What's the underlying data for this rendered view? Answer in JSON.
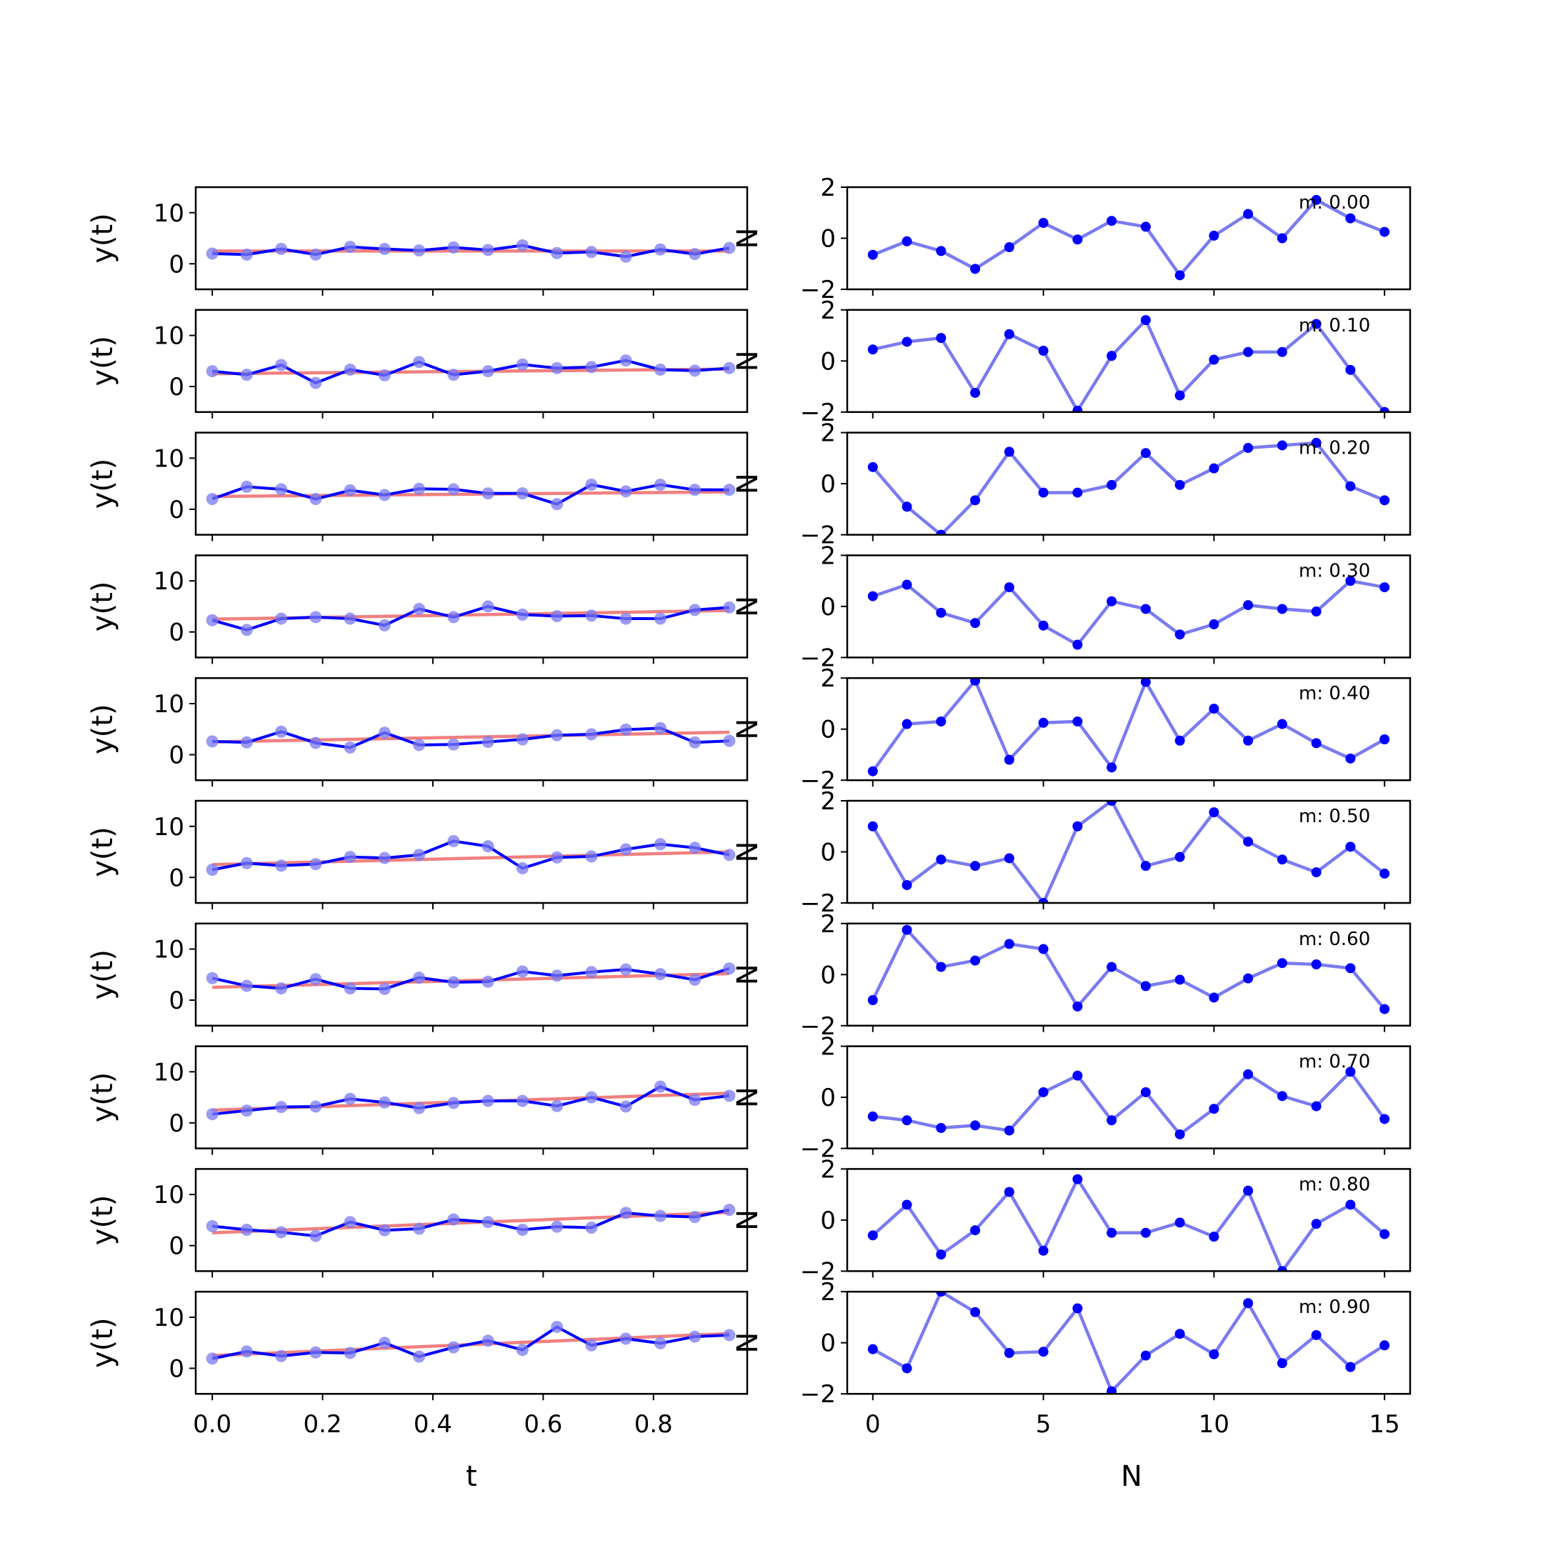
{
  "chart_data": [
    {
      "type": "line",
      "title": "",
      "xlabel": "t",
      "ylabel": "y(t)",
      "xlim": [
        -0.03,
        0.97
      ],
      "ylim": [
        -5,
        15
      ],
      "xticks": [
        0.0,
        0.2,
        0.4,
        0.6,
        0.8
      ],
      "xtick_labels": [
        "0.0",
        "0.2",
        "0.4",
        "0.6",
        "0.8"
      ],
      "yticks": [
        0,
        10
      ],
      "ytick_labels": [
        "0",
        "10"
      ],
      "x": [
        0.0,
        0.0625,
        0.125,
        0.1875,
        0.25,
        0.3125,
        0.375,
        0.4375,
        0.5,
        0.5625,
        0.625,
        0.6875,
        0.75,
        0.8125,
        0.875,
        0.9375
      ],
      "panels": [
        {
          "y": [
            2.0,
            1.8,
            2.9,
            1.8,
            3.3,
            2.9,
            2.6,
            3.2,
            2.7,
            3.6,
            2.1,
            2.3,
            1.4,
            2.8,
            1.9,
            3.1
          ],
          "fit": [
            2.5,
            2.5
          ]
        },
        {
          "y": [
            3.0,
            2.3,
            4.2,
            0.7,
            3.3,
            2.2,
            4.8,
            2.3,
            3.0,
            4.3,
            3.6,
            3.8,
            5.1,
            3.3,
            3.1,
            3.6
          ],
          "fit": [
            2.5,
            3.4
          ]
        },
        {
          "y": [
            2.0,
            4.4,
            3.9,
            2.0,
            3.7,
            2.8,
            4.0,
            3.9,
            3.1,
            3.1,
            1.0,
            4.8,
            3.5,
            4.8,
            3.8,
            3.8
          ],
          "fit": [
            2.5,
            3.4
          ]
        },
        {
          "y": [
            2.3,
            0.4,
            2.6,
            2.9,
            2.6,
            1.3,
            4.5,
            2.9,
            5.0,
            3.4,
            3.1,
            3.2,
            2.6,
            2.6,
            4.3,
            4.8
          ],
          "fit": [
            2.5,
            4.2
          ]
        },
        {
          "y": [
            2.6,
            2.4,
            4.5,
            2.3,
            1.4,
            4.3,
            1.9,
            2.0,
            2.5,
            3.0,
            3.8,
            4.0,
            4.9,
            5.2,
            2.4,
            2.7
          ],
          "fit": [
            2.5,
            4.4
          ]
        },
        {
          "y": [
            1.5,
            2.8,
            2.3,
            2.6,
            4.0,
            3.8,
            4.4,
            7.1,
            6.1,
            1.8,
            3.9,
            4.1,
            5.5,
            6.5,
            5.8,
            4.4
          ],
          "fit": [
            2.5,
            5.0
          ]
        },
        {
          "y": [
            4.3,
            2.8,
            2.3,
            4.1,
            2.3,
            2.2,
            4.4,
            3.5,
            3.6,
            5.6,
            4.8,
            5.5,
            6.0,
            5.1,
            4.0,
            6.2
          ],
          "fit": [
            2.5,
            5.2
          ]
        },
        {
          "y": [
            1.7,
            2.4,
            3.1,
            3.2,
            4.7,
            4.0,
            2.9,
            3.9,
            4.3,
            4.3,
            3.3,
            5.0,
            3.2,
            7.1,
            4.5,
            5.3
          ],
          "fit": [
            2.5,
            5.8
          ]
        },
        {
          "y": [
            3.8,
            3.1,
            2.6,
            1.9,
            4.6,
            3.0,
            3.3,
            5.1,
            4.6,
            3.1,
            3.7,
            3.5,
            6.4,
            5.8,
            5.6,
            7.0
          ],
          "fit": [
            2.5,
            6.5
          ]
        },
        {
          "y": [
            1.9,
            3.3,
            2.4,
            3.1,
            3.0,
            5.0,
            2.3,
            4.1,
            5.4,
            3.6,
            8.1,
            4.5,
            5.8,
            4.9,
            6.2,
            6.5
          ],
          "fit": [
            2.5,
            6.8
          ]
        }
      ]
    },
    {
      "type": "line",
      "title": "",
      "xlabel": "N",
      "ylabel": "N",
      "xlim": [
        -0.75,
        15.75
      ],
      "ylim": [
        -2,
        2
      ],
      "xticks": [
        0,
        5,
        10,
        15
      ],
      "xtick_labels": [
        "0",
        "5",
        "10",
        "15"
      ],
      "yticks": [
        -2,
        0,
        2
      ],
      "ytick_labels": [
        "−2",
        "0",
        "2"
      ],
      "x": [
        0,
        1,
        2,
        3,
        4,
        5,
        6,
        7,
        8,
        9,
        10,
        11,
        12,
        13,
        14,
        15
      ],
      "panels": [
        {
          "label": "m: 0.00",
          "y": [
            -0.65,
            -0.12,
            -0.5,
            -1.2,
            -0.35,
            0.6,
            -0.05,
            0.68,
            0.45,
            -1.45,
            0.1,
            0.95,
            0.0,
            1.5,
            0.78,
            0.25
          ]
        },
        {
          "label": "m: 0.10",
          "y": [
            0.45,
            0.75,
            0.9,
            -1.25,
            1.05,
            0.4,
            -1.95,
            0.2,
            1.6,
            -1.35,
            0.05,
            0.35,
            0.35,
            1.45,
            -0.35,
            -2.0
          ]
        },
        {
          "label": "m: 0.20",
          "y": [
            0.65,
            -0.9,
            -2.0,
            -0.65,
            1.25,
            -0.35,
            -0.35,
            -0.05,
            1.2,
            -0.05,
            0.6,
            1.4,
            1.5,
            1.6,
            -0.1,
            -0.65
          ]
        },
        {
          "label": "m: 0.30",
          "y": [
            0.4,
            0.85,
            -0.25,
            -0.65,
            0.75,
            -0.75,
            -1.5,
            0.2,
            -0.1,
            -1.1,
            -0.7,
            0.05,
            -0.1,
            -0.2,
            1.0,
            0.75
          ]
        },
        {
          "label": "m: 0.40",
          "y": [
            -1.65,
            0.2,
            0.3,
            1.9,
            -1.2,
            0.25,
            0.3,
            -1.5,
            1.85,
            -0.45,
            0.8,
            -0.45,
            0.2,
            -0.55,
            -1.15,
            -0.4
          ]
        },
        {
          "label": "m: 0.50",
          "y": [
            1.0,
            -1.3,
            -0.3,
            -0.55,
            -0.25,
            -2.0,
            1.0,
            2.0,
            -0.55,
            -0.2,
            1.55,
            0.4,
            -0.3,
            -0.8,
            0.2,
            -0.85
          ]
        },
        {
          "label": "m: 0.60",
          "y": [
            -1.0,
            1.75,
            0.3,
            0.55,
            1.2,
            1.0,
            -1.25,
            0.3,
            -0.45,
            -0.2,
            -0.9,
            -0.15,
            0.45,
            0.4,
            0.25,
            -1.35
          ]
        },
        {
          "label": "m: 0.70",
          "y": [
            -0.75,
            -0.9,
            -1.2,
            -1.1,
            -1.3,
            0.2,
            0.85,
            -0.9,
            0.2,
            -1.45,
            -0.45,
            0.9,
            0.05,
            -0.35,
            1.0,
            -0.85
          ]
        },
        {
          "label": "m: 0.80",
          "y": [
            -0.6,
            0.6,
            -1.35,
            -0.4,
            1.1,
            -1.2,
            1.6,
            -0.5,
            -0.5,
            -0.1,
            -0.65,
            1.15,
            -2.0,
            -0.15,
            0.6,
            -0.55
          ]
        },
        {
          "label": "m: 0.90",
          "y": [
            -0.25,
            -1.0,
            2.0,
            1.2,
            -0.4,
            -0.35,
            1.35,
            -1.9,
            -0.5,
            0.35,
            -0.45,
            1.55,
            -0.8,
            0.3,
            -0.95,
            -0.1
          ]
        }
      ]
    }
  ],
  "colors": {
    "series": "#0000ff",
    "series_faded": "#7a7af0",
    "fit": "#f08080",
    "axis": "#000000"
  }
}
